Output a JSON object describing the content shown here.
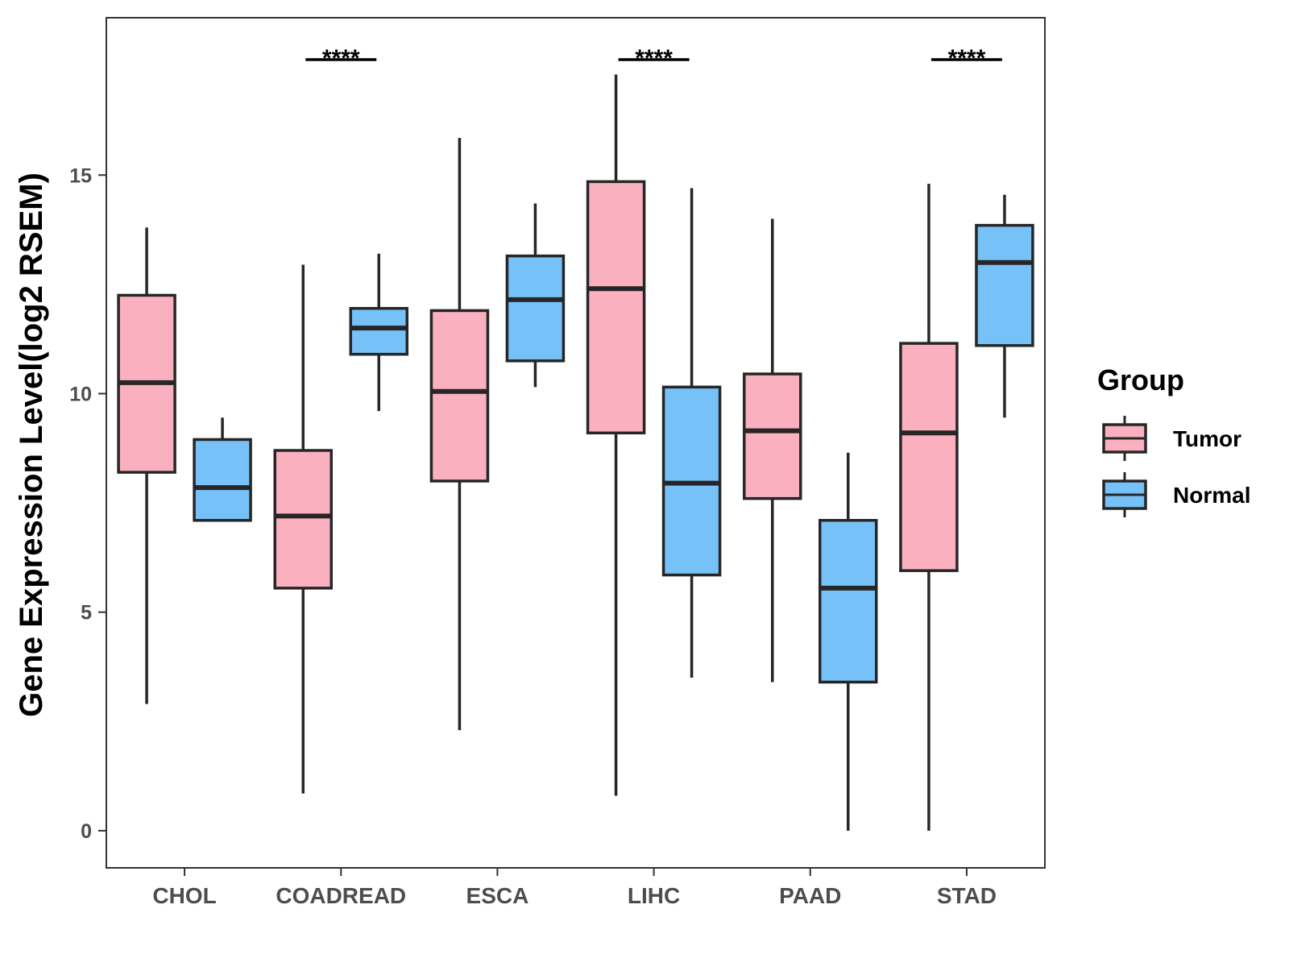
{
  "chart_data": {
    "type": "boxplot",
    "ylabel": "Gene Expression Level(log2 RSEM)",
    "xlabel": "",
    "ylim": [
      -0.85,
      18.6
    ],
    "yticks": [
      0,
      5,
      10,
      15
    ],
    "categories": [
      "CHOL",
      "COADREAD",
      "ESCA",
      "LIHC",
      "PAAD",
      "STAD"
    ],
    "legend": {
      "title": "Group",
      "position": "right",
      "entries": [
        {
          "name": "Tumor",
          "color": "#FBB0C0"
        },
        {
          "name": "Normal",
          "color": "#76C1F8"
        }
      ]
    },
    "series": [
      {
        "name": "Tumor",
        "color": "#FBB0C0",
        "boxes": [
          {
            "category": "CHOL",
            "min": 2.9,
            "q1": 8.2,
            "median": 10.25,
            "q3": 12.25,
            "max": 13.8
          },
          {
            "category": "COADREAD",
            "min": 0.85,
            "q1": 5.55,
            "median": 7.2,
            "q3": 8.7,
            "max": 12.95
          },
          {
            "category": "ESCA",
            "min": 2.3,
            "q1": 8.0,
            "median": 10.05,
            "q3": 11.9,
            "max": 15.85
          },
          {
            "category": "LIHC",
            "min": 0.8,
            "q1": 9.1,
            "median": 12.4,
            "q3": 14.85,
            "max": 17.3
          },
          {
            "category": "PAAD",
            "min": 3.4,
            "q1": 7.6,
            "median": 9.15,
            "q3": 10.45,
            "max": 14.0
          },
          {
            "category": "STAD",
            "min": 0.0,
            "q1": 5.95,
            "median": 9.1,
            "q3": 11.15,
            "max": 14.8
          }
        ]
      },
      {
        "name": "Normal",
        "color": "#76C1F8",
        "boxes": [
          {
            "category": "CHOL",
            "min": 7.1,
            "q1": 7.1,
            "median": 7.85,
            "q3": 8.95,
            "max": 9.45
          },
          {
            "category": "COADREAD",
            "min": 9.6,
            "q1": 10.9,
            "median": 11.5,
            "q3": 11.95,
            "max": 13.2
          },
          {
            "category": "ESCA",
            "min": 10.15,
            "q1": 10.75,
            "median": 12.15,
            "q3": 13.15,
            "max": 14.35
          },
          {
            "category": "LIHC",
            "min": 3.5,
            "q1": 5.85,
            "median": 7.95,
            "q3": 10.15,
            "max": 14.7
          },
          {
            "category": "PAAD",
            "min": 0.0,
            "q1": 3.4,
            "median": 5.55,
            "q3": 7.1,
            "max": 8.65
          },
          {
            "category": "STAD",
            "min": 9.45,
            "q1": 11.1,
            "median": 13.0,
            "q3": 13.85,
            "max": 14.55
          }
        ]
      }
    ],
    "significance": [
      {
        "category": "COADREAD",
        "label": "****"
      },
      {
        "category": "LIHC",
        "label": "****"
      },
      {
        "category": "STAD",
        "label": "****"
      }
    ]
  }
}
